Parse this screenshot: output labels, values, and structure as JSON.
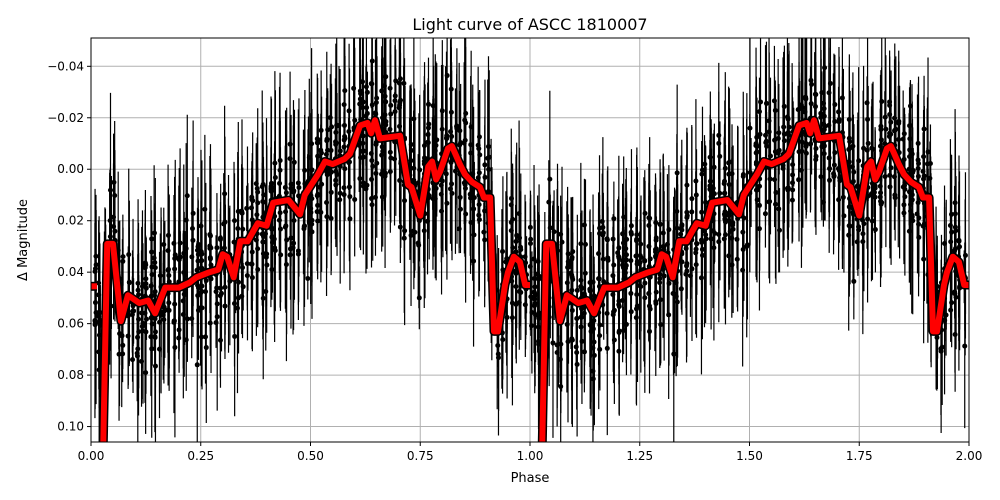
{
  "chart_data": {
    "type": "scatter",
    "title": "Light curve of ASCC 1810007",
    "xlabel": "Phase",
    "ylabel": "Δ Magnitude",
    "xlim": [
      0,
      2
    ],
    "ylim": [
      0.106,
      -0.051
    ],
    "y_inverted": true,
    "grid": true,
    "x_ticks": [
      0,
      0.25,
      0.5,
      0.75,
      1.0,
      1.25,
      1.5,
      1.75,
      2.0
    ],
    "x_tick_labels": [
      "0.00",
      "0.25",
      "0.50",
      "0.75",
      "1.00",
      "1.25",
      "1.50",
      "1.75",
      "2.00"
    ],
    "y_ticks": [
      -0.04,
      -0.02,
      0.0,
      0.02,
      0.04,
      0.06,
      0.08,
      0.1
    ],
    "y_tick_labels": [
      "−0.04",
      "−0.02",
      "0.00",
      "0.02",
      "0.04",
      "0.06",
      "0.08",
      "0.10"
    ],
    "colors": {
      "observations": "#000000",
      "model": "#ff0000",
      "grid": "#b0b0b0"
    },
    "series": [
      {
        "kind": "errorbar-scatter",
        "color": "#000000",
        "description_of_values": "phase-folded photometry, repeated over two cycles, scattered around the model with about 0.02 mag spread"
      },
      {
        "kind": "line",
        "color": "#ff0000",
        "period_repeat": [
          0,
          1
        ],
        "points": [
          [
            0.0,
            0.0455
          ],
          [
            0.014,
            0.0455
          ],
          [
            0.028,
            0.2
          ],
          [
            0.037,
            0.029
          ],
          [
            0.05,
            0.029
          ],
          [
            0.068,
            0.059
          ],
          [
            0.084,
            0.049
          ],
          [
            0.11,
            0.052
          ],
          [
            0.13,
            0.051
          ],
          [
            0.146,
            0.056
          ],
          [
            0.169,
            0.046
          ],
          [
            0.2,
            0.046
          ],
          [
            0.225,
            0.044
          ],
          [
            0.24,
            0.042
          ],
          [
            0.27,
            0.04
          ],
          [
            0.29,
            0.039
          ],
          [
            0.3,
            0.033
          ],
          [
            0.31,
            0.034
          ],
          [
            0.325,
            0.042
          ],
          [
            0.34,
            0.028
          ],
          [
            0.357,
            0.028
          ],
          [
            0.37,
            0.024
          ],
          [
            0.38,
            0.021
          ],
          [
            0.4,
            0.022
          ],
          [
            0.415,
            0.013
          ],
          [
            0.45,
            0.012
          ],
          [
            0.476,
            0.0175
          ],
          [
            0.487,
            0.01
          ],
          [
            0.517,
            0.002
          ],
          [
            0.533,
            -0.003
          ],
          [
            0.55,
            -0.002
          ],
          [
            0.578,
            -0.004
          ],
          [
            0.59,
            -0.006
          ],
          [
            0.613,
            -0.017
          ],
          [
            0.63,
            -0.018
          ],
          [
            0.638,
            -0.014
          ],
          [
            0.647,
            -0.019
          ],
          [
            0.658,
            -0.012
          ],
          [
            0.704,
            -0.013
          ],
          [
            0.722,
            0.006
          ],
          [
            0.73,
            0.007
          ],
          [
            0.75,
            0.018
          ],
          [
            0.768,
            -0.001
          ],
          [
            0.777,
            -0.003
          ],
          [
            0.786,
            0.004
          ],
          [
            0.795,
            0.001
          ],
          [
            0.813,
            -0.008
          ],
          [
            0.822,
            -0.009
          ],
          [
            0.84,
            -0.002
          ],
          [
            0.852,
            0.002
          ],
          [
            0.868,
            0.005
          ],
          [
            0.886,
            0.007
          ],
          [
            0.895,
            0.011
          ],
          [
            0.909,
            0.011
          ],
          [
            0.918,
            0.063
          ],
          [
            0.927,
            0.063
          ],
          [
            0.943,
            0.045
          ],
          [
            0.95,
            0.04
          ],
          [
            0.963,
            0.034
          ],
          [
            0.977,
            0.036
          ],
          [
            0.989,
            0.045
          ],
          [
            1.0,
            0.045
          ]
        ]
      }
    ]
  }
}
